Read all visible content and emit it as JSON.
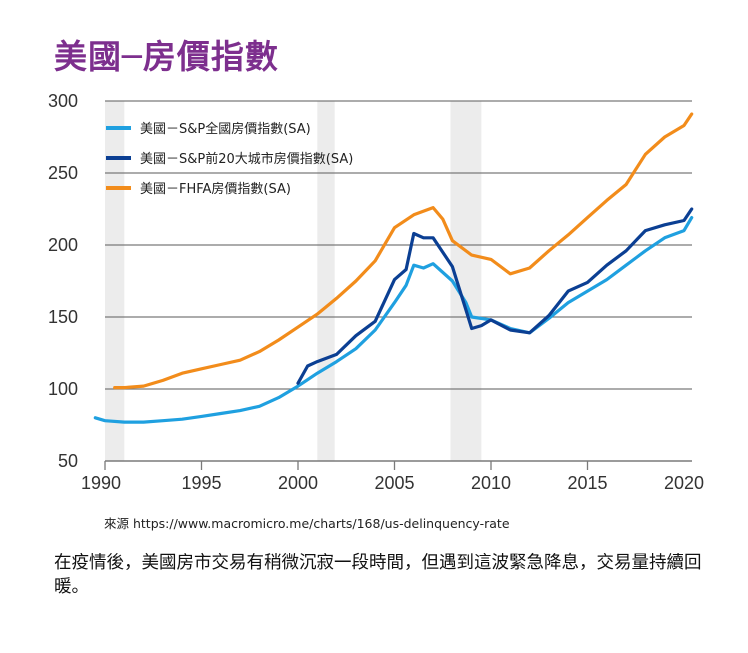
{
  "title": "美國─房價指數",
  "source_text": "來源 https://www.macromicro.me/charts/168/us-delinquency-rate",
  "caption": "在疫情後，美國房市交易有稍微沉寂一段時間，但遇到這波緊急降息，交易量持續回暖。",
  "chart_data": {
    "type": "line",
    "title": "美國─房價指數",
    "xlabel": "",
    "ylabel": "",
    "xlim": [
      1990,
      2020
    ],
    "ylim": [
      50,
      300
    ],
    "xticks": [
      1990,
      1995,
      2000,
      2005,
      2010,
      2015,
      2020
    ],
    "yticks": [
      50,
      100,
      150,
      200,
      250,
      300
    ],
    "grid": "horizontal",
    "legend_position": "top-left",
    "shaded_periods": [
      [
        1990.0,
        1991.0
      ],
      [
        2001.0,
        2001.9
      ],
      [
        2007.9,
        2009.5
      ]
    ],
    "series": [
      {
        "name": "美國－S&P全國房價指數(SA)",
        "color": "#1fa0e0",
        "x": [
          1989.5,
          1990,
          1991,
          1992,
          1993,
          1994,
          1995,
          1996,
          1997,
          1998,
          1999,
          2000,
          2001,
          2002,
          2003,
          2004,
          2005,
          2005.6,
          2006,
          2006.5,
          2007,
          2008,
          2008.7,
          2009,
          2010,
          2011,
          2012,
          2013,
          2014,
          2015,
          2016,
          2017,
          2018,
          2019,
          2020,
          2020.4
        ],
        "values": [
          80,
          78,
          77,
          77,
          78,
          79,
          81,
          83,
          85,
          88,
          94,
          102,
          111,
          119,
          128,
          141,
          160,
          172,
          186,
          184,
          187,
          175,
          160,
          150,
          148,
          142,
          139,
          149,
          160,
          168,
          176,
          186,
          196,
          205,
          210,
          219
        ]
      },
      {
        "name": "美國－S&P前20大城市房價指數(SA)",
        "color": "#0b3f93",
        "x": [
          2000,
          2000.5,
          2001,
          2002,
          2003,
          2004,
          2005,
          2005.6,
          2006,
          2006.5,
          2007,
          2008,
          2008.7,
          2009,
          2009.5,
          2010,
          2011,
          2012,
          2013,
          2014,
          2015,
          2016,
          2017,
          2018,
          2019,
          2020,
          2020.4
        ],
        "values": [
          104,
          116,
          119,
          124,
          137,
          147,
          176,
          183,
          208,
          205,
          205,
          185,
          155,
          142,
          144,
          148,
          141,
          139,
          151,
          168,
          174,
          186,
          196,
          210,
          214,
          217,
          225
        ]
      },
      {
        "name": "美國－FHFA房價指數(SA)",
        "color": "#f28c1b",
        "x": [
          1990.5,
          1991,
          1992,
          1993,
          1994,
          1995,
          1996,
          1997,
          1998,
          1999,
          2000,
          2001,
          2002,
          2003,
          2004,
          2005,
          2006,
          2007,
          2007.5,
          2008,
          2009,
          2010,
          2010.5,
          2011,
          2012,
          2013,
          2014,
          2015,
          2016,
          2017,
          2018,
          2019,
          2020,
          2020.4
        ],
        "values": [
          101,
          101,
          102,
          106,
          111,
          114,
          117,
          120,
          126,
          134,
          143,
          152,
          163,
          175,
          189,
          212,
          221,
          226,
          218,
          203,
          193,
          190,
          185,
          180,
          184,
          196,
          207,
          219,
          231,
          242,
          263,
          275,
          283,
          291
        ]
      }
    ]
  }
}
